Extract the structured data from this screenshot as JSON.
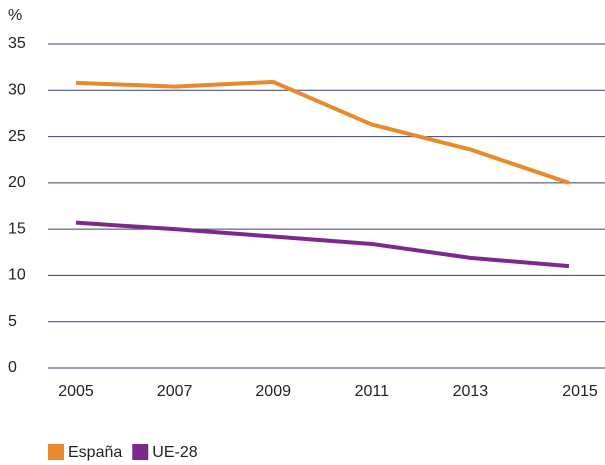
{
  "chart_data": {
    "type": "line",
    "y_unit": "%",
    "x": [
      "2005",
      "2007",
      "2009",
      "2011",
      "2013",
      "2015"
    ],
    "series": [
      {
        "name": "España",
        "color": "#e8892b",
        "values": [
          30.8,
          30.4,
          30.9,
          26.3,
          23.6,
          20.0
        ]
      },
      {
        "name": "UE-28",
        "color": "#7b2a8c",
        "values": [
          15.7,
          15.0,
          14.2,
          13.4,
          11.9,
          11.0
        ]
      }
    ],
    "ylim": [
      0,
      35
    ],
    "yticks": [
      0,
      5,
      10,
      15,
      20,
      25,
      30,
      35
    ],
    "grid": true
  }
}
